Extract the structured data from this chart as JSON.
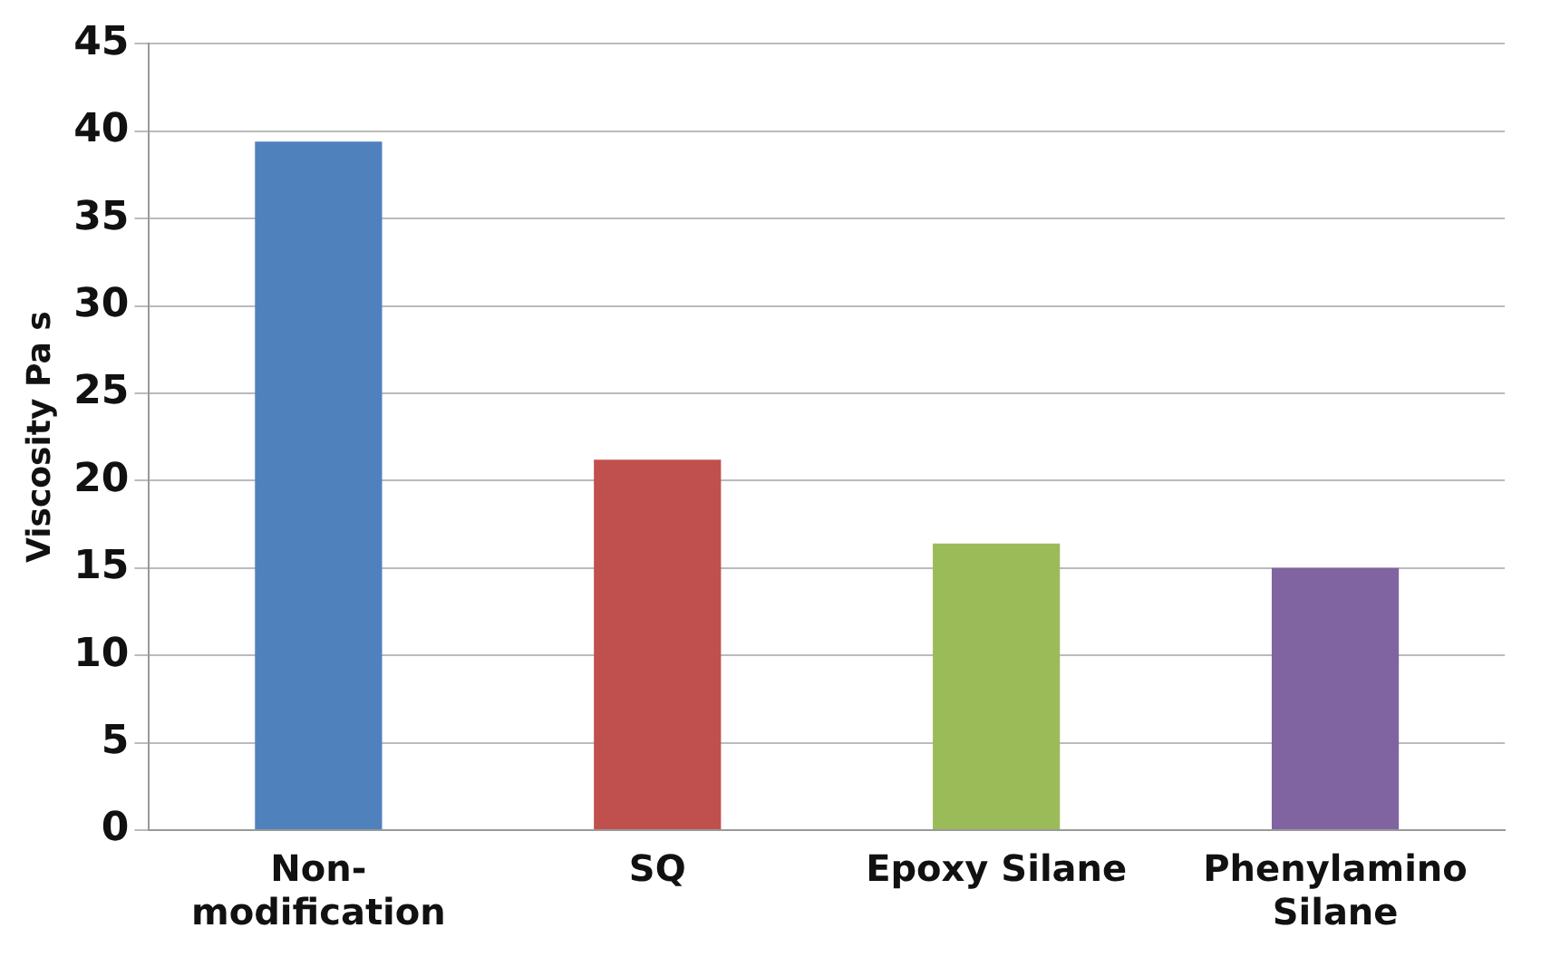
{
  "chart_data": {
    "type": "bar",
    "ylabel": "Viscosity Pa s",
    "categories": [
      "Non-\nmodification",
      "SQ",
      "Epoxy Silane",
      "Phenylamino\nSilane"
    ],
    "values": [
      39.4,
      21.2,
      16.4,
      15.0
    ],
    "colors": [
      "#4f81bd",
      "#c0504d",
      "#9bbb59",
      "#8064a2"
    ],
    "ylim": [
      0,
      45
    ],
    "yticks": [
      0,
      5,
      10,
      15,
      20,
      25,
      30,
      35,
      40,
      45
    ],
    "grid": "y",
    "legend": false
  }
}
